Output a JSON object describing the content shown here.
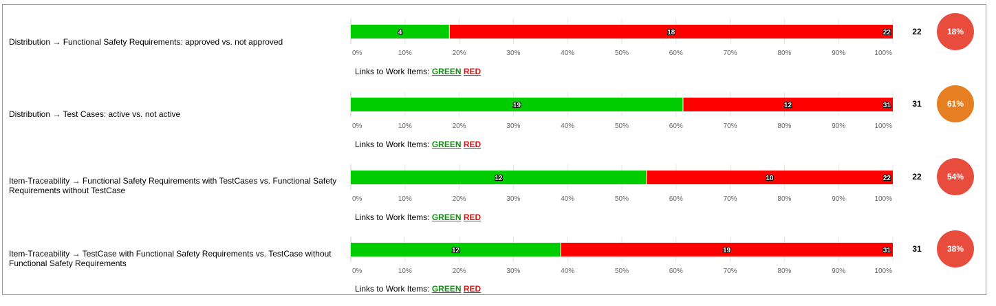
{
  "links_prefix": "Links to Work Items:",
  "links_green": "GREEN",
  "links_red": "RED",
  "colors": {
    "green": "#00cc00",
    "red": "#ff0000",
    "circle_red": "#e84c3d",
    "circle_orange": "#e67e22",
    "link_green": "#158c15",
    "link_red": "#e31414"
  },
  "axis_ticks": [
    "0%",
    "10%",
    "20%",
    "30%",
    "40%",
    "50%",
    "60%",
    "70%",
    "80%",
    "90%",
    "100%"
  ],
  "rows": [
    {
      "label": "Distribution → Functional Safety Requirements: approved vs. not approved",
      "green": 4,
      "red": 18,
      "total": 22,
      "percent": "18%",
      "circle_color": "#e84c3d"
    },
    {
      "label": "Distribution → Test Cases: active vs. not active",
      "green": 19,
      "red": 12,
      "total": 31,
      "percent": "61%",
      "circle_color": "#e67e22"
    },
    {
      "label": "Item-Traceability → Functional Safety Requirements with TestCases vs. Functional Safety Requirements without TestCase",
      "green": 12,
      "red": 10,
      "total": 22,
      "percent": "54%",
      "circle_color": "#e84c3d"
    },
    {
      "label": "Item-Traceability → TestCase with Functional Safety Requirements vs. TestCase without Functional Safety Requirements",
      "green": 12,
      "red": 19,
      "total": 31,
      "percent": "38%",
      "circle_color": "#e84c3d"
    }
  ],
  "chart_data": [
    {
      "type": "bar",
      "orientation": "horizontal-stacked",
      "series": [
        {
          "name": "",
          "values": [
            4
          ]
        },
        {
          "name": "",
          "values": [
            18
          ]
        }
      ],
      "total": 22,
      "xlim": [
        0,
        100
      ],
      "x_unit": "%",
      "grid": true
    },
    {
      "type": "bar",
      "orientation": "horizontal-stacked",
      "series": [
        {
          "name": "",
          "values": [
            19
          ]
        },
        {
          "name": "",
          "values": [
            12
          ]
        }
      ],
      "total": 31,
      "xlim": [
        0,
        100
      ],
      "x_unit": "%",
      "grid": true
    },
    {
      "type": "bar",
      "orientation": "horizontal-stacked",
      "series": [
        {
          "name": "",
          "values": [
            12
          ]
        },
        {
          "name": "",
          "values": [
            10
          ]
        }
      ],
      "total": 22,
      "xlim": [
        0,
        100
      ],
      "x_unit": "%",
      "grid": true
    },
    {
      "type": "bar",
      "orientation": "horizontal-stacked",
      "series": [
        {
          "name": "",
          "values": [
            12
          ]
        },
        {
          "name": "",
          "values": [
            19
          ]
        }
      ],
      "total": 31,
      "xlim": [
        0,
        100
      ],
      "x_unit": "%",
      "grid": true
    }
  ]
}
